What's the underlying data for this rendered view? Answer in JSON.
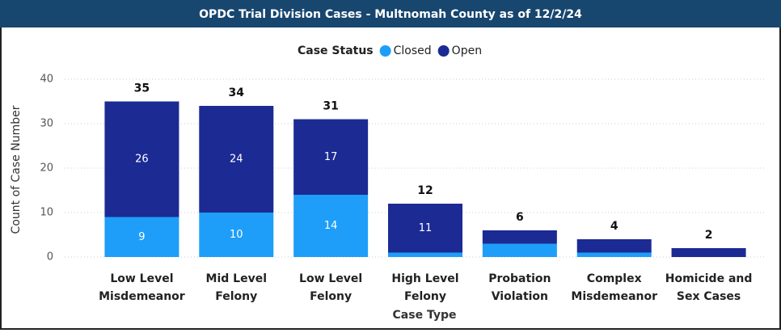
{
  "chart_data": {
    "type": "stacked_bar",
    "title": "OPDC Trial Division Cases - Multnomah County as of 12/2/24",
    "legend_title": "Case Status",
    "x_label": "Case Type",
    "y_label": "Count of Case Number",
    "categories": [
      [
        "Low Level",
        "Misdemeanor"
      ],
      [
        "Mid Level",
        "Felony"
      ],
      [
        "Low Level",
        "Felony"
      ],
      [
        "High Level",
        "Felony"
      ],
      [
        "Probation",
        "Violation"
      ],
      [
        "Complex",
        "Misdemeanor"
      ],
      [
        "Homicide and",
        "Sex Cases"
      ]
    ],
    "series": [
      {
        "name": "Closed",
        "color": "#1e9ef8",
        "values": [
          9,
          10,
          14,
          1,
          3,
          1,
          0
        ]
      },
      {
        "name": "Open",
        "color": "#1c2a94",
        "values": [
          26,
          24,
          17,
          11,
          3,
          3,
          2
        ]
      }
    ],
    "totals": [
      35,
      34,
      31,
      12,
      6,
      4,
      2
    ],
    "ylim": [
      0,
      40
    ],
    "yticks": [
      0,
      10,
      20,
      30,
      40
    ],
    "grid": true,
    "legend": "top"
  }
}
